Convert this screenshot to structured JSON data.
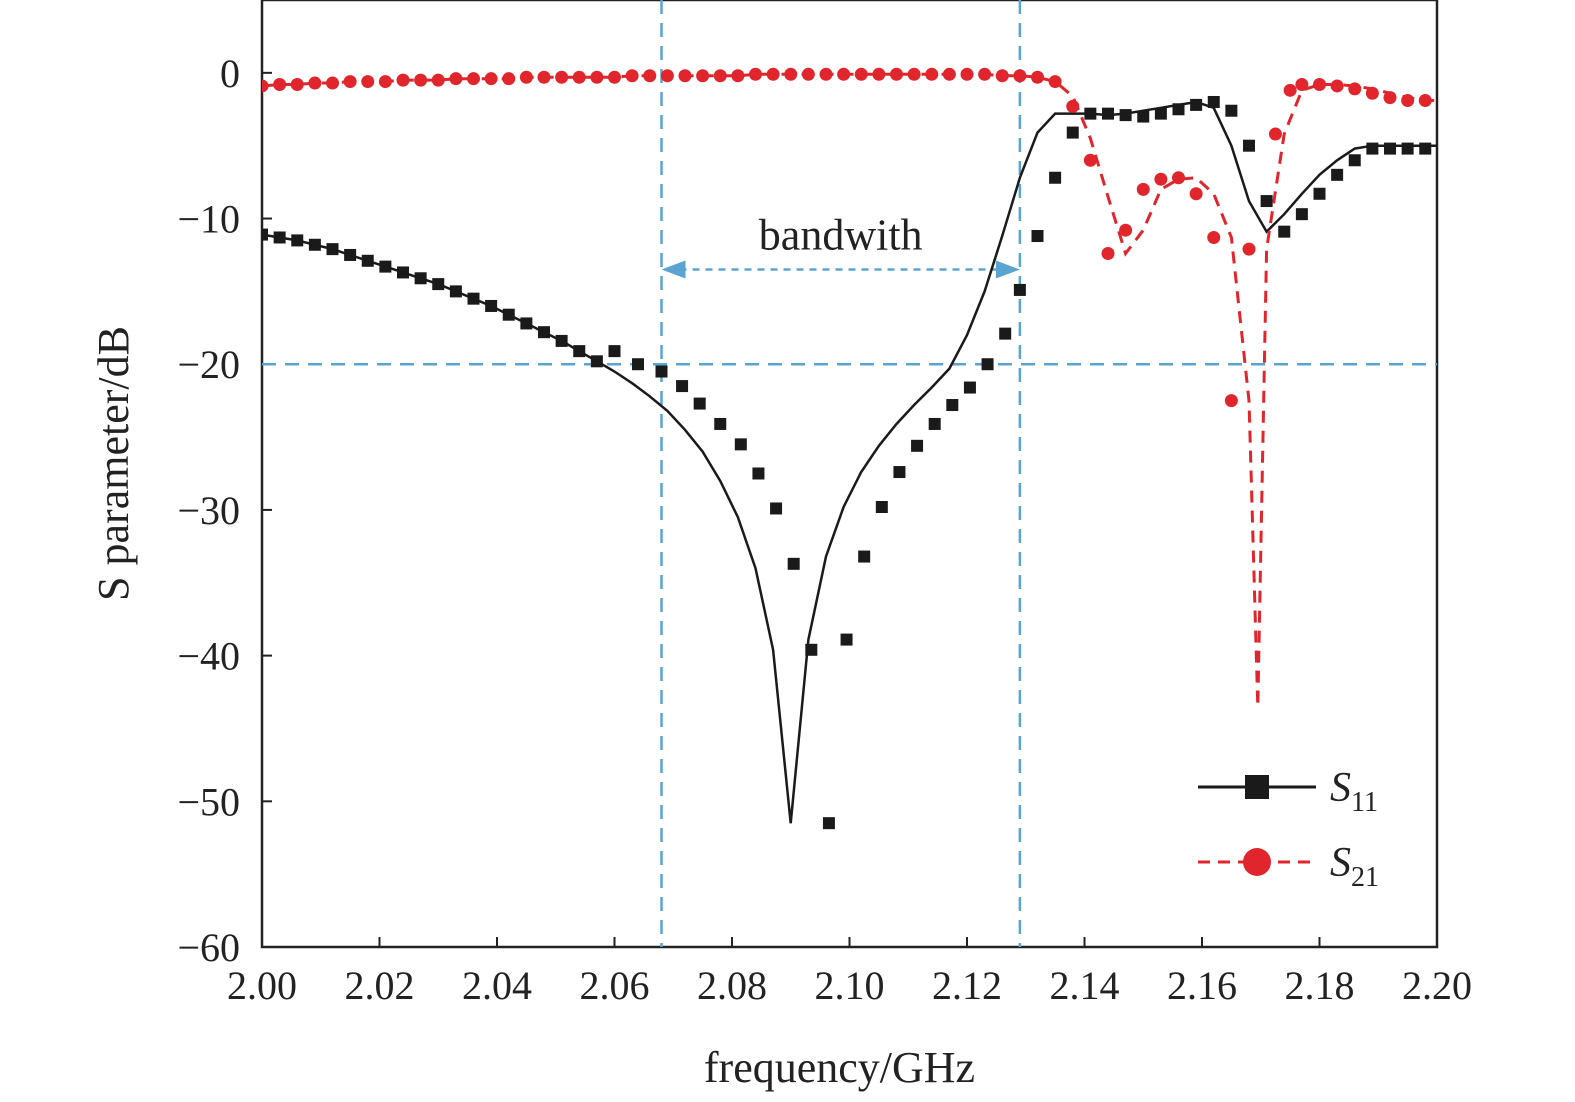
{
  "chart_data": {
    "type": "line",
    "title": "",
    "xlabel": "frequency/GHz",
    "ylabel": "S parameter/dB",
    "xlim": [
      2.0,
      2.2
    ],
    "ylim": [
      -60,
      5
    ],
    "x_ticks": [
      "2.00",
      "2.02",
      "2.04",
      "2.06",
      "2.08",
      "2.10",
      "2.12",
      "2.14",
      "2.16",
      "2.18",
      "2.20"
    ],
    "y_ticks": [
      "0",
      "−10",
      "−20",
      "−30",
      "−40",
      "−50",
      "−60"
    ],
    "grid": false,
    "legend_position": "bottom-right",
    "colors": {
      "s11": "#1a1a1a",
      "s21": "#e0262c",
      "guide": "#5aa4d2"
    },
    "reference_lines": {
      "y": -20,
      "x": [
        2.068,
        2.129
      ]
    },
    "annotation": {
      "text": "bandwith",
      "y": -13.5,
      "x_start": 2.068,
      "x_end": 2.129
    },
    "series": [
      {
        "name": "S11",
        "legend_main": "S",
        "legend_sub": "11",
        "marker": "square",
        "line": "solid",
        "x": [
          2.0,
          2.003,
          2.006,
          2.009,
          2.012,
          2.015,
          2.018,
          2.021,
          2.024,
          2.027,
          2.03,
          2.033,
          2.036,
          2.039,
          2.042,
          2.045,
          2.048,
          2.051,
          2.054,
          2.057,
          2.06,
          2.063,
          2.066,
          2.069,
          2.072,
          2.075,
          2.078,
          2.081,
          2.084,
          2.087,
          2.09,
          2.093,
          2.096,
          2.099,
          2.102,
          2.105,
          2.108,
          2.111,
          2.114,
          2.117,
          2.12,
          2.123,
          2.126,
          2.129,
          2.132,
          2.135,
          2.138,
          2.141,
          2.144,
          2.147,
          2.15,
          2.153,
          2.156,
          2.159,
          2.162,
          2.165,
          2.168,
          2.171,
          2.174,
          2.177,
          2.18,
          2.183,
          2.186,
          2.189,
          2.192,
          2.195,
          2.198,
          2.2
        ],
        "values": [
          -11.1,
          -11.3,
          -11.5,
          -11.8,
          -12.1,
          -12.5,
          -12.9,
          -13.3,
          -13.7,
          -14.1,
          -14.5,
          -15.0,
          -15.5,
          -16.0,
          -16.6,
          -17.2,
          -17.8,
          -18.4,
          -19.1,
          -19.8,
          -20.5,
          -21.3,
          -22.2,
          -23.2,
          -24.5,
          -26.0,
          -28.0,
          -30.5,
          -34.0,
          -39.6,
          -51.5,
          -38.9,
          -33.2,
          -29.8,
          -27.4,
          -25.6,
          -24.1,
          -22.8,
          -21.6,
          -20.3,
          -18.0,
          -15.0,
          -11.2,
          -7.2,
          -4.1,
          -2.8,
          -2.8,
          -2.8,
          -2.9,
          -2.8,
          -2.6,
          -2.4,
          -2.2,
          -2.0,
          -2.4,
          -5.0,
          -8.8,
          -10.9,
          -9.7,
          -8.3,
          -7.0,
          -6.0,
          -5.2,
          -5.0,
          -5.0,
          -5.0,
          -5.0,
          -5.0
        ],
        "x_markers": [
          2.0,
          2.003,
          2.006,
          2.009,
          2.012,
          2.015,
          2.018,
          2.021,
          2.024,
          2.027,
          2.03,
          2.033,
          2.036,
          2.039,
          2.042,
          2.045,
          2.048,
          2.051,
          2.054,
          2.057,
          2.06,
          2.064,
          2.068,
          2.0715,
          2.0745,
          2.078,
          2.0815,
          2.0845,
          2.0875,
          2.0905,
          2.0935,
          2.0965,
          2.0995,
          2.1025,
          2.1055,
          2.1085,
          2.1115,
          2.1145,
          2.1175,
          2.1205,
          2.1235,
          2.1265,
          2.129,
          2.132,
          2.135,
          2.138,
          2.141,
          2.144,
          2.147,
          2.15,
          2.153,
          2.156,
          2.159,
          2.162,
          2.165,
          2.168,
          2.171,
          2.174,
          2.177,
          2.18,
          2.183,
          2.186,
          2.189,
          2.192,
          2.195,
          2.198
        ],
        "y_markers": [
          -11.1,
          -11.3,
          -11.5,
          -11.8,
          -12.1,
          -12.5,
          -12.9,
          -13.3,
          -13.7,
          -14.1,
          -14.5,
          -15.0,
          -15.5,
          -16.0,
          -16.6,
          -17.2,
          -17.8,
          -18.4,
          -19.1,
          -19.8,
          -19.1,
          -20.0,
          -20.5,
          -21.5,
          -22.7,
          -24.1,
          -25.5,
          -27.5,
          -29.9,
          -33.7,
          -39.6,
          -51.5,
          -38.9,
          -33.2,
          -29.8,
          -27.4,
          -25.6,
          -24.1,
          -22.8,
          -21.6,
          -20.0,
          -17.9,
          -14.9,
          -11.2,
          -7.2,
          -4.1,
          -2.8,
          -2.8,
          -2.9,
          -3.0,
          -2.8,
          -2.5,
          -2.2,
          -2.0,
          -2.6,
          -5.0,
          -8.8,
          -10.9,
          -9.7,
          -8.3,
          -7.0,
          -6.0,
          -5.2,
          -5.2,
          -5.2,
          -5.2
        ]
      },
      {
        "name": "S21",
        "legend_main": "S",
        "legend_sub": "21",
        "marker": "circle",
        "line": "dashed",
        "x": [
          2.0,
          2.003,
          2.006,
          2.009,
          2.012,
          2.015,
          2.018,
          2.021,
          2.024,
          2.027,
          2.03,
          2.033,
          2.036,
          2.039,
          2.042,
          2.045,
          2.048,
          2.051,
          2.054,
          2.057,
          2.06,
          2.063,
          2.066,
          2.069,
          2.072,
          2.075,
          2.078,
          2.081,
          2.084,
          2.087,
          2.09,
          2.093,
          2.096,
          2.099,
          2.102,
          2.105,
          2.108,
          2.111,
          2.114,
          2.117,
          2.12,
          2.123,
          2.126,
          2.129,
          2.132,
          2.135,
          2.138,
          2.141,
          2.144,
          2.147,
          2.15,
          2.153,
          2.156,
          2.159,
          2.162,
          2.165,
          2.168,
          2.1695,
          2.171,
          2.174,
          2.177,
          2.18,
          2.183,
          2.186,
          2.189,
          2.192,
          2.195,
          2.198,
          2.2
        ],
        "values": [
          -0.9,
          -0.8,
          -0.8,
          -0.7,
          -0.7,
          -0.6,
          -0.6,
          -0.6,
          -0.5,
          -0.5,
          -0.5,
          -0.4,
          -0.4,
          -0.4,
          -0.4,
          -0.3,
          -0.3,
          -0.3,
          -0.3,
          -0.3,
          -0.3,
          -0.2,
          -0.2,
          -0.2,
          -0.2,
          -0.2,
          -0.2,
          -0.2,
          -0.1,
          -0.1,
          -0.1,
          -0.1,
          -0.1,
          -0.1,
          -0.1,
          -0.1,
          -0.1,
          -0.1,
          -0.1,
          -0.1,
          -0.1,
          -0.1,
          -0.2,
          -0.2,
          -0.3,
          -0.6,
          -1.6,
          -4.5,
          -8.5,
          -12.4,
          -10.8,
          -8.0,
          -7.3,
          -7.2,
          -8.3,
          -11.3,
          -22.5,
          -43.5,
          -12.1,
          -4.2,
          -1.2,
          -0.8,
          -0.8,
          -0.9,
          -1.1,
          -1.4,
          -1.7,
          -1.9,
          -1.9
        ],
        "x_markers": [
          2.0,
          2.003,
          2.006,
          2.009,
          2.012,
          2.015,
          2.018,
          2.021,
          2.024,
          2.027,
          2.03,
          2.033,
          2.036,
          2.039,
          2.042,
          2.045,
          2.048,
          2.051,
          2.054,
          2.057,
          2.06,
          2.063,
          2.066,
          2.069,
          2.072,
          2.075,
          2.078,
          2.081,
          2.084,
          2.087,
          2.09,
          2.093,
          2.096,
          2.099,
          2.102,
          2.105,
          2.108,
          2.111,
          2.114,
          2.117,
          2.12,
          2.123,
          2.126,
          2.129,
          2.132,
          2.135,
          2.138,
          2.141,
          2.144,
          2.147,
          2.15,
          2.153,
          2.156,
          2.159,
          2.162,
          2.165,
          2.168,
          2.1725,
          2.175,
          2.177,
          2.18,
          2.183,
          2.186,
          2.189,
          2.192,
          2.195,
          2.198
        ],
        "y_markers": [
          -0.9,
          -0.8,
          -0.8,
          -0.7,
          -0.7,
          -0.6,
          -0.6,
          -0.6,
          -0.5,
          -0.5,
          -0.5,
          -0.4,
          -0.4,
          -0.4,
          -0.4,
          -0.3,
          -0.3,
          -0.3,
          -0.3,
          -0.3,
          -0.3,
          -0.2,
          -0.2,
          -0.2,
          -0.2,
          -0.2,
          -0.2,
          -0.2,
          -0.1,
          -0.1,
          -0.1,
          -0.1,
          -0.1,
          -0.1,
          -0.1,
          -0.1,
          -0.1,
          -0.1,
          -0.1,
          -0.1,
          -0.1,
          -0.1,
          -0.2,
          -0.2,
          -0.3,
          -0.6,
          -2.3,
          -6.0,
          -12.4,
          -10.8,
          -8.0,
          -7.3,
          -7.2,
          -8.3,
          -11.3,
          -22.5,
          -12.1,
          -4.2,
          -1.2,
          -0.8,
          -0.8,
          -0.9,
          -1.1,
          -1.4,
          -1.7,
          -1.9,
          -1.9
        ]
      }
    ]
  }
}
